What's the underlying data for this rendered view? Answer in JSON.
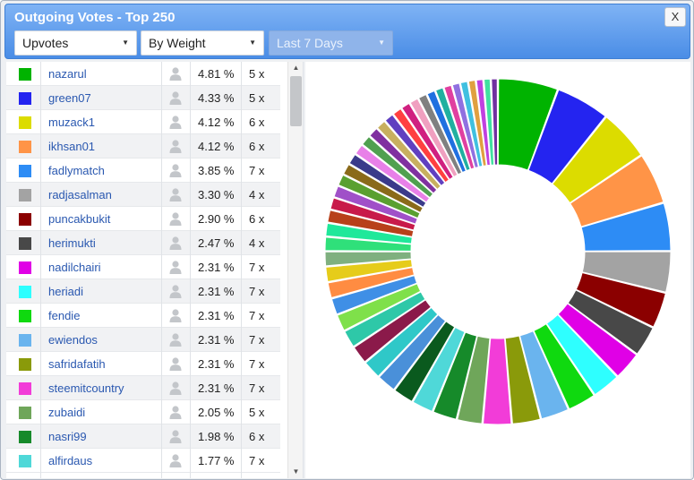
{
  "window": {
    "title": "Outgoing Votes - Top 250",
    "close_label": "X"
  },
  "filters": {
    "vote_type": {
      "selected": "Upvotes"
    },
    "sort_by": {
      "selected": "By Weight"
    },
    "period": {
      "selected": "Last 7 Days",
      "disabled": true
    }
  },
  "icons": {
    "dropdown_arrow": "▼",
    "scroll_up": "▲",
    "scroll_down": "▼"
  },
  "voters": [
    {
      "name": "nazarul",
      "percent": "4.81 %",
      "count": "5 x",
      "color": "#00b300"
    },
    {
      "name": "green07",
      "percent": "4.33 %",
      "count": "5 x",
      "color": "#2424f0"
    },
    {
      "name": "muzack1",
      "percent": "4.12 %",
      "count": "6 x",
      "color": "#dcdc00"
    },
    {
      "name": "ikhsan01",
      "percent": "4.12 %",
      "count": "6 x",
      "color": "#ff9447"
    },
    {
      "name": "fadlymatch",
      "percent": "3.85 %",
      "count": "7 x",
      "color": "#2d8cf5"
    },
    {
      "name": "radjasalman",
      "percent": "3.30 %",
      "count": "4 x",
      "color": "#a3a3a3"
    },
    {
      "name": "puncakbukit",
      "percent": "2.90 %",
      "count": "6 x",
      "color": "#8b0000"
    },
    {
      "name": "herimukti",
      "percent": "2.47 %",
      "count": "4 x",
      "color": "#484848"
    },
    {
      "name": "nadilchairi",
      "percent": "2.31 %",
      "count": "7 x",
      "color": "#e000e6"
    },
    {
      "name": "heriadi",
      "percent": "2.31 %",
      "count": "7 x",
      "color": "#2effff"
    },
    {
      "name": "fendie",
      "percent": "2.31 %",
      "count": "7 x",
      "color": "#0fd90f"
    },
    {
      "name": "ewiendos",
      "percent": "2.31 %",
      "count": "7 x",
      "color": "#6ab4ee"
    },
    {
      "name": "safridafatih",
      "percent": "2.31 %",
      "count": "7 x",
      "color": "#8a9a0a"
    },
    {
      "name": "steemitcountry",
      "percent": "2.31 %",
      "count": "7 x",
      "color": "#f23cd8"
    },
    {
      "name": "zubaidi",
      "percent": "2.05 %",
      "count": "5 x",
      "color": "#6fa65a"
    },
    {
      "name": "nasri99",
      "percent": "1.98 %",
      "count": "6 x",
      "color": "#168a2a"
    },
    {
      "name": "alfirdaus",
      "percent": "1.77 %",
      "count": "7 x",
      "color": "#4fd8d8"
    }
  ],
  "chart_data": {
    "type": "pie",
    "donut": true,
    "categories": [
      "nazarul",
      "green07",
      "muzack1",
      "ikhsan01",
      "fadlymatch",
      "radjasalman",
      "puncakbukit",
      "herimukti",
      "nadilchairi",
      "heriadi",
      "fendie",
      "ewiendos",
      "safridafatih",
      "steemitcountry",
      "zubaidi",
      "nasri99",
      "alfirdaus"
    ],
    "values": [
      4.81,
      4.33,
      4.12,
      4.12,
      3.85,
      3.3,
      2.9,
      2.47,
      2.31,
      2.31,
      2.31,
      2.31,
      2.31,
      2.31,
      2.05,
      1.98,
      1.77
    ],
    "colors": [
      "#00b300",
      "#2424f0",
      "#dcdc00",
      "#ff9447",
      "#2d8cf5",
      "#a3a3a3",
      "#8b0000",
      "#484848",
      "#e000e6",
      "#2effff",
      "#0fd90f",
      "#6ab4ee",
      "#8a9a0a",
      "#f23cd8",
      "#6fa65a",
      "#168a2a",
      "#4fd8d8"
    ],
    "other_slices": [
      {
        "value": 1.7,
        "color": "#0a5a1e"
      },
      {
        "value": 1.6,
        "color": "#4a90d9"
      },
      {
        "value": 1.55,
        "color": "#2fc8c8"
      },
      {
        "value": 1.5,
        "color": "#8b1a4a"
      },
      {
        "value": 1.45,
        "color": "#2ec8a8"
      },
      {
        "value": 1.4,
        "color": "#7fe04a"
      },
      {
        "value": 1.35,
        "color": "#3f8fe6"
      },
      {
        "value": 1.3,
        "color": "#ff8c42"
      },
      {
        "value": 1.25,
        "color": "#e6cc1a"
      },
      {
        "value": 1.2,
        "color": "#7fb07f"
      },
      {
        "value": 1.15,
        "color": "#2fe07a"
      },
      {
        "value": 1.1,
        "color": "#1fe89a"
      },
      {
        "value": 1.05,
        "color": "#b8401a"
      },
      {
        "value": 1.0,
        "color": "#c81a4a"
      },
      {
        "value": 0.98,
        "color": "#a050c8"
      },
      {
        "value": 0.96,
        "color": "#5aa030"
      },
      {
        "value": 0.94,
        "color": "#8a6a1a"
      },
      {
        "value": 0.92,
        "color": "#3a3a8a"
      },
      {
        "value": 0.9,
        "color": "#e880e8"
      },
      {
        "value": 0.88,
        "color": "#50a050"
      },
      {
        "value": 0.86,
        "color": "#8030a0"
      },
      {
        "value": 0.84,
        "color": "#c8b060"
      },
      {
        "value": 0.82,
        "color": "#6040c0"
      },
      {
        "value": 0.8,
        "color": "#ff4040"
      },
      {
        "value": 0.78,
        "color": "#d02080"
      },
      {
        "value": 0.76,
        "color": "#f0a0c0"
      },
      {
        "value": 0.74,
        "color": "#808080"
      },
      {
        "value": 0.72,
        "color": "#2070e0"
      },
      {
        "value": 0.7,
        "color": "#20b0a0"
      },
      {
        "value": 0.68,
        "color": "#e040a0"
      },
      {
        "value": 0.66,
        "color": "#9070e0"
      },
      {
        "value": 0.64,
        "color": "#40c0e0"
      },
      {
        "value": 0.62,
        "color": "#e0a040"
      },
      {
        "value": 0.6,
        "color": "#c040e0"
      },
      {
        "value": 0.58,
        "color": "#40e0a0"
      },
      {
        "value": 0.56,
        "color": "#7030a0"
      }
    ]
  }
}
